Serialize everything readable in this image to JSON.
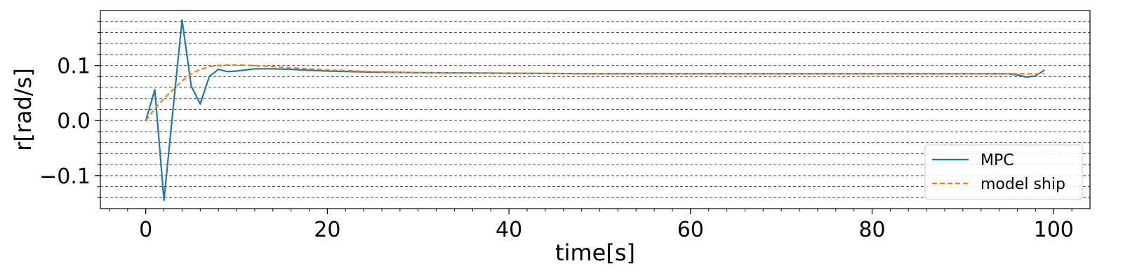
{
  "chart_data": {
    "type": "line",
    "title": "",
    "xlabel": "time[s]",
    "ylabel": "r[rad/s]",
    "xlim": [
      -5,
      104
    ],
    "ylim": [
      -0.16,
      0.2
    ],
    "xticks": [
      0,
      20,
      40,
      60,
      80,
      100
    ],
    "xtick_labels": [
      "0",
      "20",
      "40",
      "60",
      "80",
      "100"
    ],
    "yticks": [
      -0.1,
      0.0,
      0.1
    ],
    "ytick_labels": [
      "−0.1",
      "0.0",
      "0.1"
    ],
    "grid": "horizontal dashed, minor ticks every 0.02",
    "legend": "lower-right",
    "series": [
      {
        "name": "MPC",
        "color": "#1f77b4",
        "style": "solid",
        "x": [
          0,
          1,
          2,
          3,
          4,
          5,
          6,
          7,
          8,
          9,
          10,
          11,
          12,
          14,
          16,
          20,
          25,
          30,
          40,
          50,
          60,
          70,
          80,
          90,
          95,
          96,
          97,
          98,
          99
        ],
        "y": [
          0.0,
          0.056,
          -0.145,
          0.02,
          0.183,
          0.063,
          0.03,
          0.08,
          0.093,
          0.089,
          0.09,
          0.092,
          0.094,
          0.094,
          0.093,
          0.09,
          0.088,
          0.087,
          0.086,
          0.085,
          0.085,
          0.085,
          0.085,
          0.085,
          0.085,
          0.083,
          0.079,
          0.081,
          0.092
        ]
      },
      {
        "name": "model ship",
        "color": "#ff7f0e",
        "style": "dashed",
        "x": [
          0,
          1,
          2,
          3,
          4,
          5,
          6,
          7,
          8,
          9,
          10,
          12,
          15,
          20,
          25,
          30,
          40,
          50,
          60,
          70,
          80,
          90,
          95,
          99
        ],
        "y": [
          0.0,
          0.022,
          0.04,
          0.056,
          0.072,
          0.085,
          0.093,
          0.098,
          0.1,
          0.101,
          0.101,
          0.1,
          0.097,
          0.092,
          0.089,
          0.087,
          0.086,
          0.085,
          0.085,
          0.085,
          0.085,
          0.085,
          0.085,
          0.085
        ]
      }
    ]
  }
}
